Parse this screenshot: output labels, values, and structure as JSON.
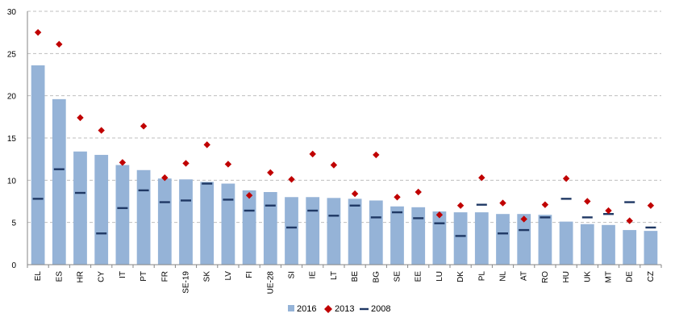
{
  "chart_data": {
    "type": "bar",
    "categories": [
      "EL",
      "ES",
      "HR",
      "CY",
      "IT",
      "PT",
      "FR",
      "SE-19",
      "SK",
      "LV",
      "FI",
      "UE-28",
      "SI",
      "IE",
      "LT",
      "BE",
      "BG",
      "SE",
      "EE",
      "LU",
      "DK",
      "PL",
      "NL",
      "AT",
      "RO",
      "HU",
      "UK",
      "MT",
      "DE",
      "CZ"
    ],
    "series": [
      {
        "name": "2016",
        "kind": "bar",
        "color": "#95B3D7",
        "values": [
          23.6,
          19.6,
          13.4,
          13.0,
          11.8,
          11.2,
          10.2,
          10.1,
          9.8,
          9.6,
          8.8,
          8.6,
          8.0,
          8.0,
          7.9,
          7.8,
          7.6,
          6.9,
          6.8,
          6.3,
          6.2,
          6.2,
          6.0,
          6.0,
          5.9,
          5.1,
          4.8,
          4.7,
          4.1,
          4.0
        ]
      },
      {
        "name": "2013",
        "kind": "marker",
        "marker": "diamond",
        "color": "#C00000",
        "values": [
          27.5,
          26.1,
          17.4,
          15.9,
          12.1,
          16.4,
          10.3,
          12.0,
          14.2,
          11.9,
          8.2,
          10.9,
          10.1,
          13.1,
          11.8,
          8.4,
          13.0,
          8.0,
          8.6,
          5.9,
          7.0,
          10.3,
          7.3,
          5.4,
          7.1,
          10.2,
          7.5,
          6.4,
          5.2,
          7.0
        ]
      },
      {
        "name": "2008",
        "kind": "dash",
        "color": "#1F3864",
        "values": [
          7.8,
          11.3,
          8.5,
          3.7,
          6.7,
          8.8,
          7.4,
          7.6,
          9.6,
          7.7,
          6.4,
          7.0,
          4.4,
          6.4,
          5.8,
          7.0,
          5.6,
          6.2,
          5.5,
          4.9,
          3.4,
          7.1,
          3.7,
          4.1,
          5.6,
          7.8,
          5.6,
          6.0,
          7.4,
          4.4
        ]
      }
    ],
    "ylim": [
      0,
      30
    ],
    "yticks": [
      "0",
      "5",
      "10",
      "15",
      "20",
      "25",
      "30"
    ],
    "grid": true,
    "legend_placement": "bottom-center"
  }
}
